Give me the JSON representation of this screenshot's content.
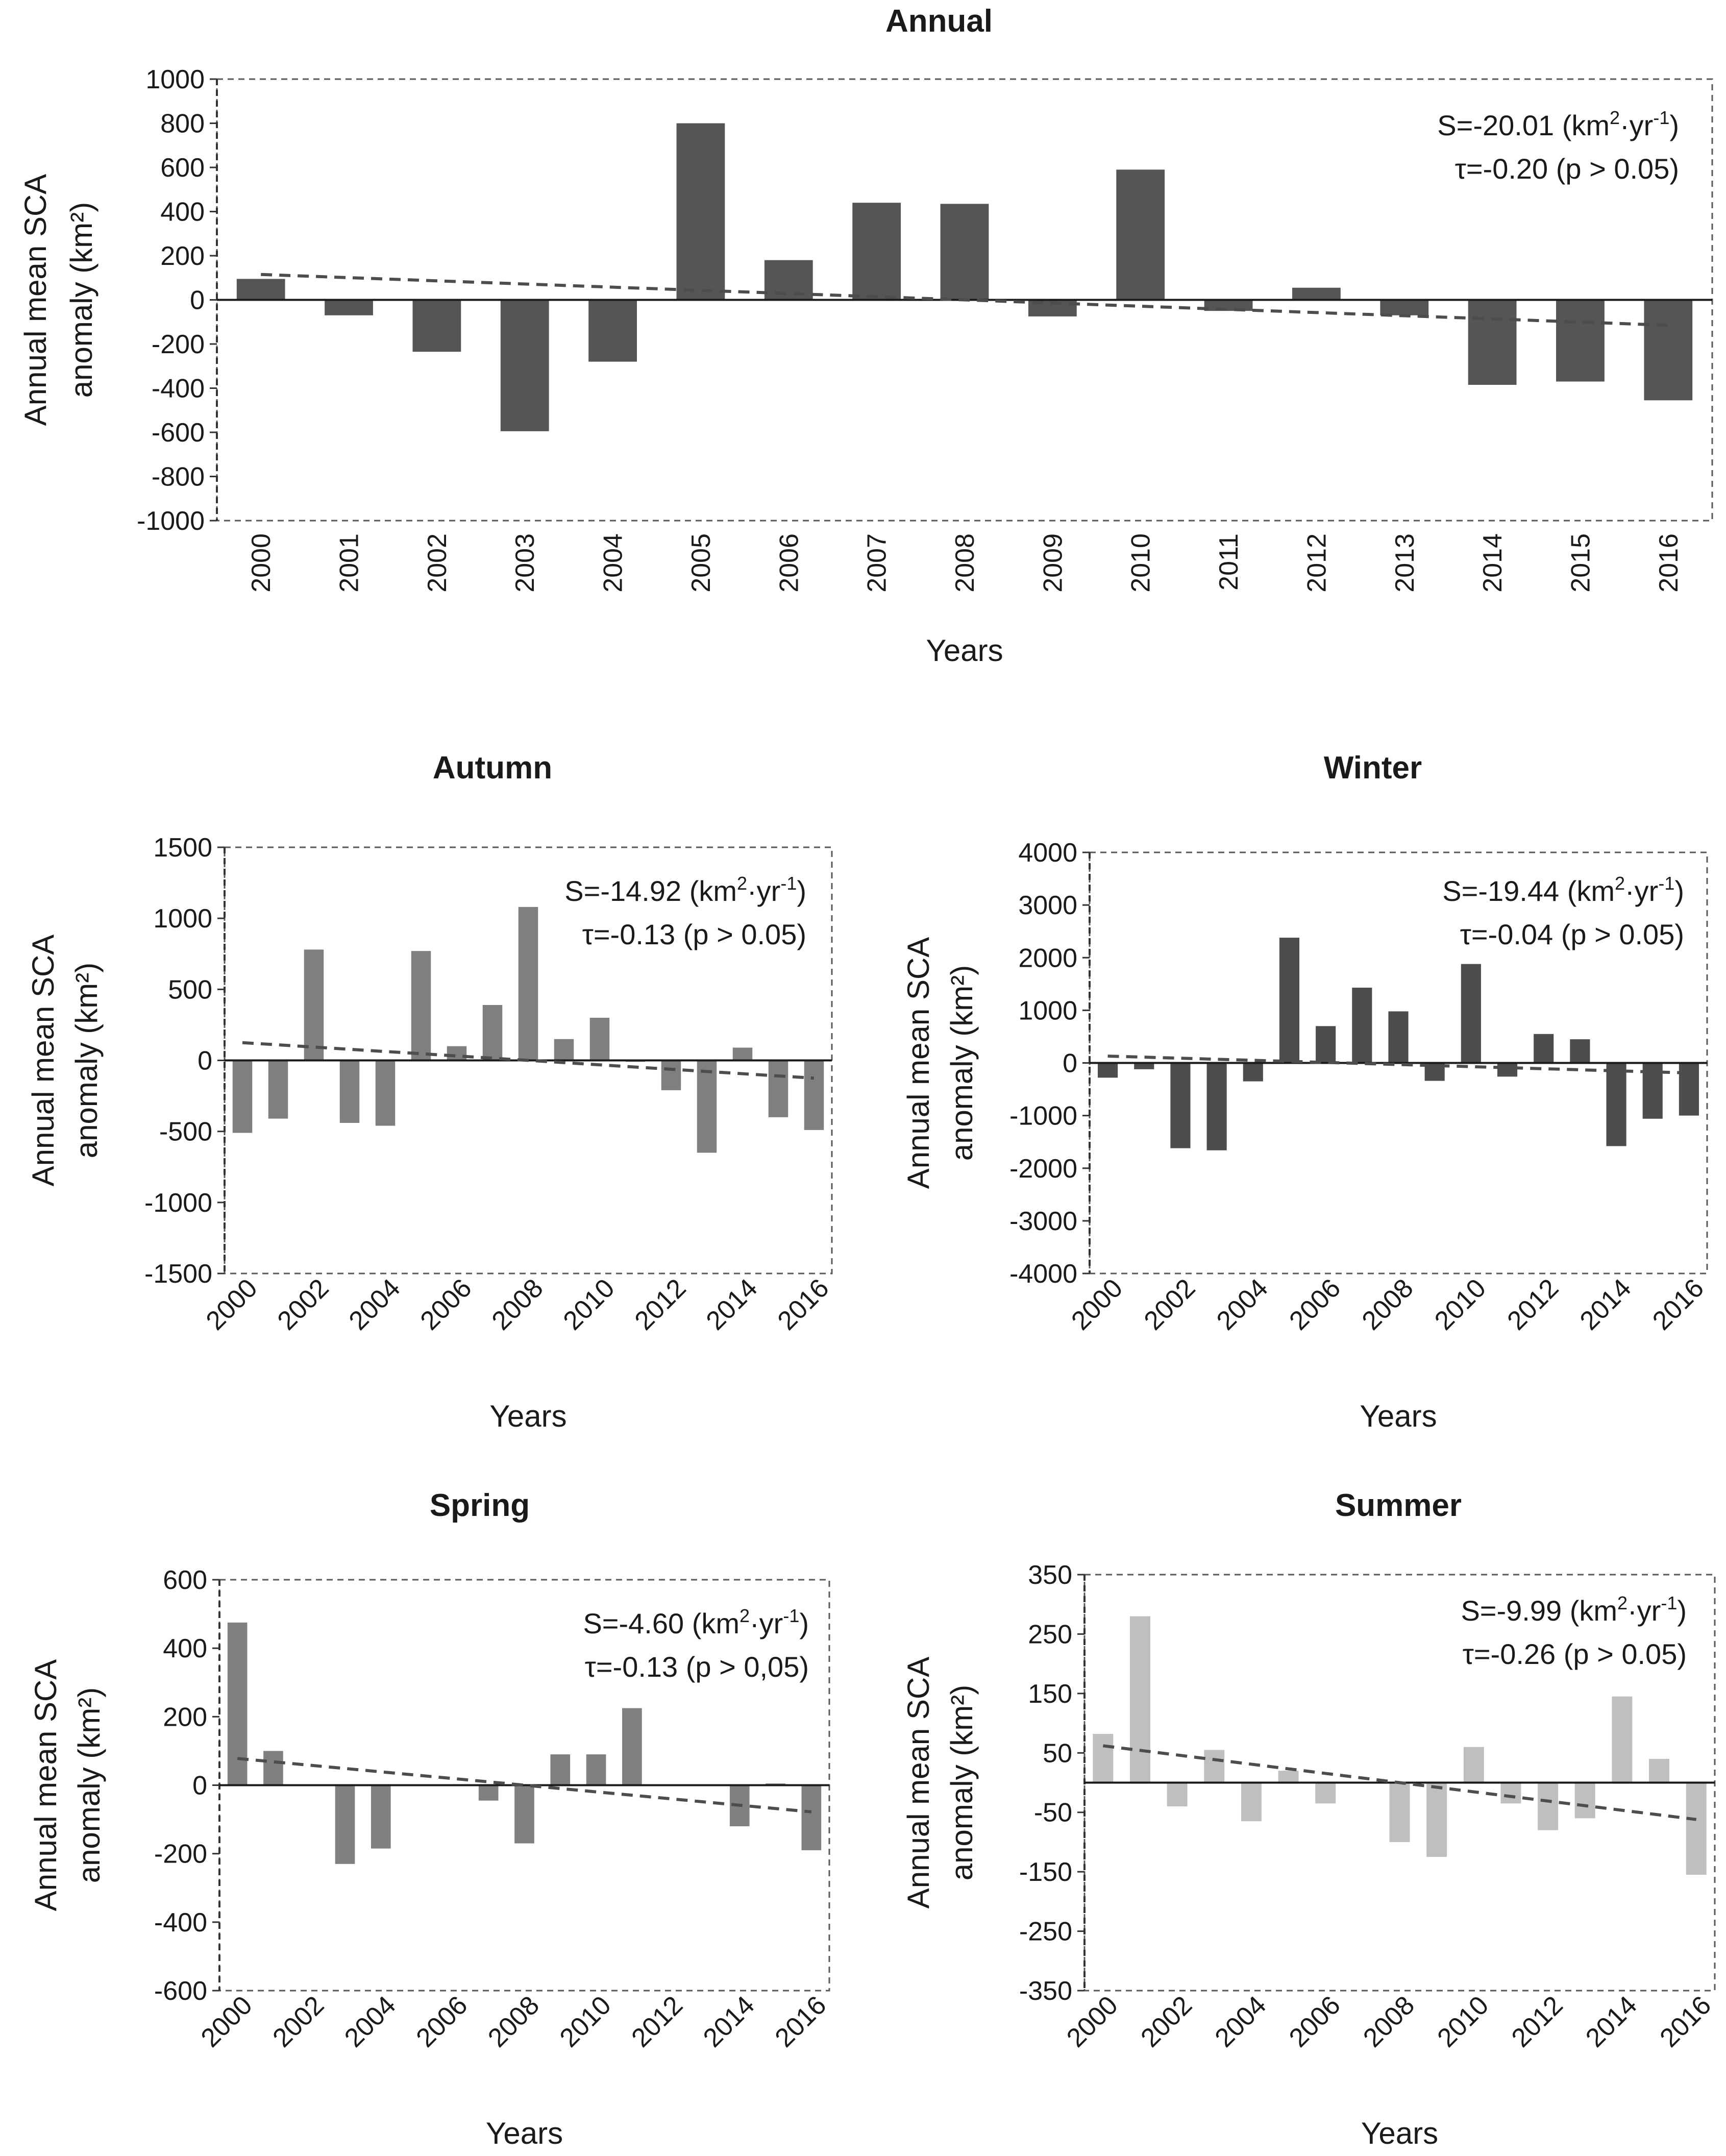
{
  "chart_data": [
    {
      "type": "bar",
      "title": "Annual",
      "ylabel": [
        "Annual mean SCA",
        "anomaly (km²)"
      ],
      "xlabel": "Years",
      "categories": [
        "2000",
        "2001",
        "2002",
        "2003",
        "2004",
        "2005",
        "2006",
        "2007",
        "2008",
        "2009",
        "2010",
        "2011",
        "2012",
        "2013",
        "2014",
        "2015",
        "2016"
      ],
      "values": [
        95,
        -70,
        -235,
        -595,
        -280,
        800,
        180,
        440,
        435,
        -75,
        590,
        -50,
        55,
        -70,
        -385,
        -370,
        -455
      ],
      "ylim": [
        -1000,
        1000
      ],
      "yticks": [
        -1000,
        -800,
        -600,
        -400,
        -200,
        0,
        200,
        400,
        600,
        800,
        1000
      ],
      "xticks_shown": [
        "2000",
        "2001",
        "2002",
        "2003",
        "2004",
        "2005",
        "2006",
        "2007",
        "2008",
        "2009",
        "2010",
        "2011",
        "2012",
        "2013",
        "2014",
        "2015",
        "2016"
      ],
      "trend": {
        "start": 115,
        "end": -115
      },
      "stats": {
        "line1_prefix": "S=-20.01 (km",
        "line1_suffix": "·yr",
        "line2": "τ=-0.20 (p > 0.05)"
      },
      "color": "#555555"
    },
    {
      "type": "bar",
      "title": "Autumn",
      "ylabel": [
        "Annual mean SCA",
        "anomaly (km²)"
      ],
      "xlabel": "Years",
      "categories": [
        "2000",
        "2001",
        "2002",
        "2003",
        "2004",
        "2005",
        "2006",
        "2007",
        "2008",
        "2009",
        "2010",
        "2011",
        "2012",
        "2013",
        "2014",
        "2015",
        "2016"
      ],
      "values": [
        -510,
        -410,
        780,
        -440,
        -460,
        770,
        100,
        390,
        1080,
        150,
        300,
        -10,
        -210,
        -650,
        90,
        -400,
        -490
      ],
      "ylim": [
        -1500,
        1500
      ],
      "yticks": [
        -1500,
        -1000,
        -500,
        0,
        500,
        1000,
        1500
      ],
      "xticks_shown": [
        "2000",
        "2002",
        "2004",
        "2006",
        "2008",
        "2010",
        "2012",
        "2014",
        "2016"
      ],
      "trend": {
        "start": 125,
        "end": -125
      },
      "stats": {
        "line1_prefix": "S=-14.92 (km",
        "line1_suffix": "·yr",
        "line2": "τ=-0.13 (p > 0.05)"
      },
      "color": "#7f7f7f"
    },
    {
      "type": "bar",
      "title": "Winter",
      "ylabel": [
        "Annual mean SCA",
        "anomaly (km²)"
      ],
      "xlabel": "Years",
      "categories": [
        "2000",
        "2001",
        "2002",
        "2003",
        "2004",
        "2005",
        "2006",
        "2007",
        "2008",
        "2009",
        "2010",
        "2011",
        "2012",
        "2013",
        "2014",
        "2015",
        "2016"
      ],
      "values": [
        -280,
        -120,
        -1620,
        -1660,
        -350,
        2380,
        700,
        1430,
        980,
        -340,
        1880,
        -260,
        550,
        450,
        -1580,
        -1060,
        -1000
      ],
      "ylim": [
        -4000,
        4000
      ],
      "yticks": [
        -4000,
        -3000,
        -2000,
        -1000,
        0,
        1000,
        2000,
        3000,
        4000
      ],
      "xticks_shown": [
        "2000",
        "2002",
        "2004",
        "2006",
        "2008",
        "2010",
        "2012",
        "2014",
        "2016"
      ],
      "trend": {
        "start": 130,
        "end": -190
      },
      "stats": {
        "line1_prefix": "S=-19.44 (km",
        "line1_suffix": "·yr",
        "line2": "τ=-0.04 (p > 0.05)"
      },
      "color": "#4d4d4d"
    },
    {
      "type": "bar",
      "title": "Spring",
      "ylabel": [
        "Annual mean SCA",
        "anomaly (km²)"
      ],
      "xlabel": "Years",
      "categories": [
        "2000",
        "2001",
        "2002",
        "2003",
        "2004",
        "2005",
        "2006",
        "2007",
        "2008",
        "2009",
        "2010",
        "2011",
        "2012",
        "2013",
        "2014",
        "2015",
        "2016"
      ],
      "values": [
        475,
        100,
        0,
        -230,
        -185,
        0,
        0,
        -45,
        -170,
        90,
        90,
        225,
        0,
        0,
        -120,
        5,
        -190
      ],
      "ylim": [
        -600,
        600
      ],
      "yticks": [
        -600,
        -400,
        -200,
        0,
        200,
        400,
        600
      ],
      "xticks_shown": [
        "2000",
        "2002",
        "2004",
        "2006",
        "2008",
        "2010",
        "2012",
        "2014",
        "2016"
      ],
      "trend": {
        "start": 78,
        "end": -78
      },
      "stats": {
        "line1_prefix": "S=-4.60 (km",
        "line1_suffix": "·yr",
        "line2": "τ=-0.13 (p > 0,05)"
      },
      "color": "#808080"
    },
    {
      "type": "bar",
      "title": "Summer",
      "ylabel": [
        "Annual mean SCA",
        "anomaly (km²)"
      ],
      "xlabel": "Years",
      "categories": [
        "2000",
        "2001",
        "2002",
        "2003",
        "2004",
        "2005",
        "2006",
        "2007",
        "2008",
        "2009",
        "2010",
        "2011",
        "2012",
        "2013",
        "2014",
        "2015",
        "2016"
      ],
      "values": [
        82,
        280,
        -40,
        55,
        -65,
        20,
        -35,
        0,
        -100,
        -125,
        60,
        -35,
        -80,
        -60,
        145,
        40,
        -155
      ],
      "ylim": [
        -350,
        350
      ],
      "yticks": [
        -350,
        -250,
        -150,
        -50,
        50,
        150,
        250,
        350
      ],
      "xticks_shown": [
        "2000",
        "2002",
        "2004",
        "2006",
        "2008",
        "2010",
        "2012",
        "2014",
        "2016"
      ],
      "trend": {
        "start": 62,
        "end": -62
      },
      "stats": {
        "line1_prefix": "S=-9.99 (km",
        "line1_suffix": "·yr",
        "line2": "τ=-0.26 (p > 0.05)"
      },
      "color": "#bfbfbf"
    }
  ]
}
